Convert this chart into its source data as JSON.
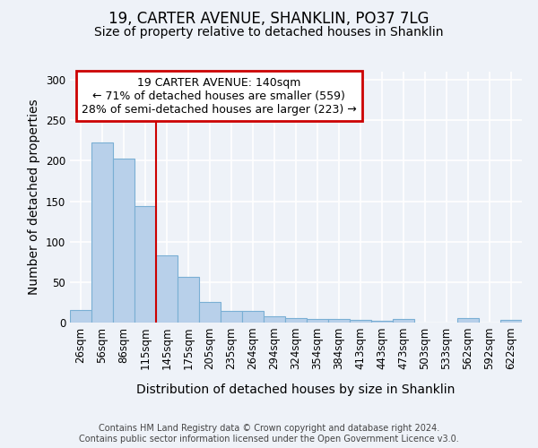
{
  "title_line1": "19, CARTER AVENUE, SHANKLIN, PO37 7LG",
  "title_line2": "Size of property relative to detached houses in Shanklin",
  "xlabel": "Distribution of detached houses by size in Shanklin",
  "ylabel": "Number of detached properties",
  "footer": "Contains HM Land Registry data © Crown copyright and database right 2024.\nContains public sector information licensed under the Open Government Licence v3.0.",
  "bin_labels": [
    "26sqm",
    "56sqm",
    "86sqm",
    "115sqm",
    "145sqm",
    "175sqm",
    "205sqm",
    "235sqm",
    "264sqm",
    "294sqm",
    "324sqm",
    "354sqm",
    "384sqm",
    "413sqm",
    "443sqm",
    "473sqm",
    "503sqm",
    "533sqm",
    "562sqm",
    "592sqm",
    "622sqm"
  ],
  "bar_values": [
    15,
    223,
    203,
    144,
    83,
    57,
    26,
    14,
    14,
    8,
    5,
    4,
    4,
    3,
    2,
    4,
    0,
    0,
    5,
    0,
    3
  ],
  "bar_color": "#b8d0ea",
  "bar_edge_color": "#7aafd4",
  "property_line_x": 4,
  "property_line_label": "19 CARTER AVENUE: 140sqm",
  "annotation_line1": "← 71% of detached houses are smaller (559)",
  "annotation_line2": "28% of semi-detached houses are larger (223) →",
  "annotation_box_color": "#ffffff",
  "annotation_box_edge": "#cc0000",
  "vline_color": "#cc0000",
  "ylim": [
    0,
    310
  ],
  "yticks": [
    0,
    50,
    100,
    150,
    200,
    250,
    300
  ],
  "background_color": "#eef2f8",
  "axes_background": "#eef2f8",
  "grid_color": "#ffffff",
  "title_fontsize": 12,
  "subtitle_fontsize": 10,
  "axis_label_fontsize": 10,
  "tick_fontsize": 8.5,
  "annotation_fontsize": 9,
  "footer_fontsize": 7
}
